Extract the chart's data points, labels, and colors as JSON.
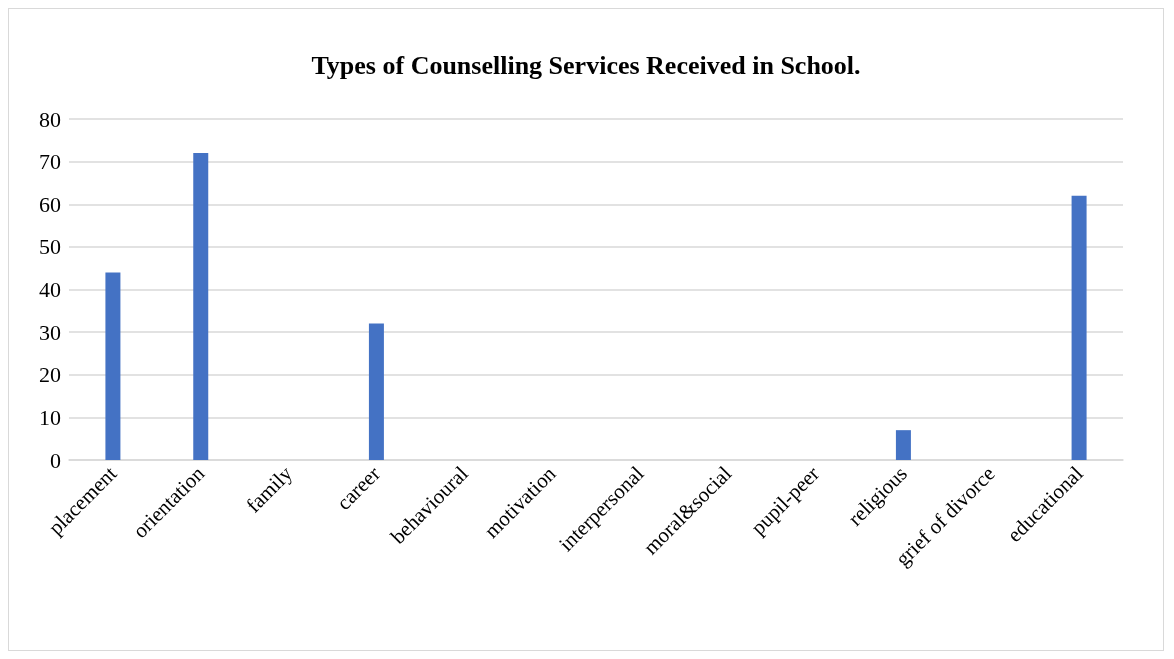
{
  "chart_data": {
    "type": "bar",
    "title": "Types of Counselling Services Received in School.",
    "categories": [
      "placement",
      "orientation",
      "family",
      "career",
      "behavioural",
      "motivation",
      "interpersonal",
      "moral&social",
      "pupil-peer",
      "religious",
      "grief of divorce",
      "educational"
    ],
    "values": [
      44,
      72,
      0,
      32,
      0,
      0,
      0,
      0,
      0,
      7,
      0,
      62
    ],
    "color": "#4472c4",
    "ylim": [
      0,
      80
    ],
    "yticks": [
      0,
      10,
      20,
      30,
      40,
      50,
      60,
      70,
      80
    ],
    "grid": "y"
  }
}
